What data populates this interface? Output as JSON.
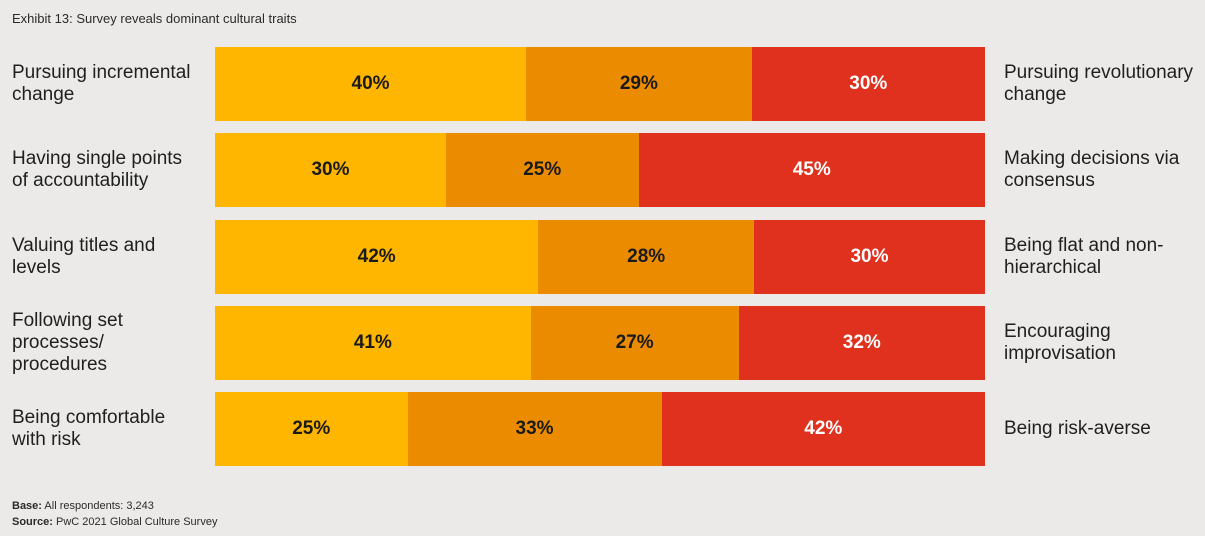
{
  "title": "Exhibit 13: Survey reveals dominant cultural traits",
  "chart_data": {
    "type": "bar",
    "stacked": true,
    "orientation": "horizontal",
    "title": "Exhibit 13: Survey reveals dominant cultural traits",
    "rows": [
      {
        "left": "Pursuing incremental change",
        "right": "Pursuing revolutionary change",
        "values": [
          40,
          29,
          30
        ],
        "labels": [
          "40%",
          "29%",
          "30%"
        ]
      },
      {
        "left": "Having single points of accountability",
        "right": "Making decisions via consensus",
        "values": [
          30,
          25,
          45
        ],
        "labels": [
          "30%",
          "25%",
          "45%"
        ]
      },
      {
        "left": "Valuing titles and levels",
        "right": "Being flat and non-hierarchical",
        "values": [
          42,
          28,
          30
        ],
        "labels": [
          "42%",
          "28%",
          "30%"
        ]
      },
      {
        "left": "Following set processes/ procedures",
        "right": "Encouraging improvisation",
        "values": [
          41,
          27,
          32
        ],
        "labels": [
          "41%",
          "27%",
          "32%"
        ]
      },
      {
        "left": "Being comfortable with risk",
        "right": "Being risk-averse",
        "values": [
          25,
          33,
          42
        ],
        "labels": [
          "25%",
          "33%",
          "42%"
        ]
      }
    ],
    "colors": [
      "#ffb600",
      "#eb8c00",
      "#e0301e"
    ]
  },
  "footer": {
    "base_label": "Base:",
    "base_text": "All respondents: 3,243",
    "source_label": "Source:",
    "source_text": "PwC 2021 Global Culture Survey"
  }
}
